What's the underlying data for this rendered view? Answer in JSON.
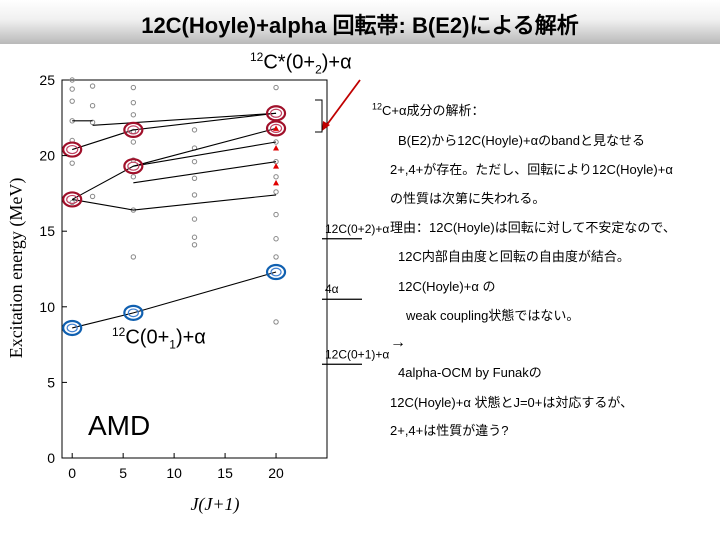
{
  "title": "12C(Hoyle)+alpha 回転帯: B(E2)による解析",
  "top_label": {
    "pre": "12",
    "main": "C*(0+",
    "sub": "2",
    "post": ")+α"
  },
  "left_label": {
    "pre": "12",
    "main": "C(0+",
    "sub": "1",
    "post": ")+α"
  },
  "amd_label": "AMD",
  "notes": {
    "line1_sup": "12",
    "line1": "C+α成分の解析：",
    "line2": "B(E2)から12C(Hoyle)+αのbandと見なせる",
    "line3": "2+,4+が存在。ただし、回転により12C(Hoyle)+α",
    "line4": "の性質は次第に失われる。",
    "line5": "理由：12C(Hoyle)は回転に対して不安定なので、",
    "line6": "12C内部自由度と回転の自由度が結合。",
    "line7": "12C(Hoyle)+α の",
    "line8": "weak coupling状態ではない。",
    "arrow": "→",
    "line9": "4alpha-OCM  by Funakの",
    "line10": "12C(Hoyle)+α 状態とJ=0+は対応するが、",
    "line11": "2+,4+は性質が違う?"
  },
  "threshold_labels": {
    "t1": "12C(0+2)+α",
    "t2": "4α",
    "t3": "12C(0+1)+α"
  },
  "chart_data": {
    "type": "scatter",
    "title": "",
    "xlabel": "J(J+1)",
    "ylabel": "Excitation energy (MeV)",
    "xlim": [
      -1,
      25
    ],
    "ylim": [
      0,
      25
    ],
    "xticks": [
      0,
      5,
      10,
      15,
      20
    ],
    "yticks": [
      0,
      5,
      10,
      15,
      20,
      25
    ],
    "gray_levels": [
      {
        "x": 0,
        "y": [
          16.9,
          19.5,
          21.0,
          22.3,
          23.6,
          24.4,
          25.0
        ]
      },
      {
        "x": 2,
        "y": [
          17.3,
          22.2,
          23.3,
          24.6
        ]
      },
      {
        "x": 6,
        "y": [
          13.3,
          16.4,
          18.6,
          19.7,
          20.9,
          21.6,
          22.7,
          23.5,
          24.5
        ]
      },
      {
        "x": 12,
        "y": [
          14.1,
          14.6,
          15.8,
          17.4,
          18.5,
          19.6,
          20.5,
          21.7
        ]
      },
      {
        "x": 20,
        "y": [
          9.0,
          13.3,
          14.5,
          16.1,
          17.6,
          18.6,
          19.6,
          20.9,
          24.5
        ]
      }
    ],
    "red_levels": {
      "x": 20,
      "y": [
        18.2,
        19.3,
        20.5,
        21.8
      ]
    },
    "highlight_red": [
      {
        "x": 0,
        "y": 20.4
      },
      {
        "x": 6,
        "y": 21.7
      },
      {
        "x": 6,
        "y": 19.3
      },
      {
        "x": 0,
        "y": 17.1
      },
      {
        "x": 20,
        "y": 22.8
      },
      {
        "x": 20,
        "y": 21.8
      }
    ],
    "highlight_blue": [
      {
        "x": 0,
        "y": 8.6
      },
      {
        "x": 6,
        "y": 9.6
      },
      {
        "x": 20,
        "y": 12.3
      }
    ],
    "band_lines": [
      [
        [
          0,
          20.4
        ],
        [
          6,
          21.7
        ],
        [
          20,
          22.8
        ]
      ],
      [
        [
          0,
          17.1
        ],
        [
          6,
          19.3
        ],
        [
          20,
          21.8
        ]
      ],
      [
        [
          0,
          8.6
        ],
        [
          6,
          9.6
        ],
        [
          20,
          12.3
        ]
      ],
      [
        [
          2,
          22.0
        ],
        [
          20,
          22.8
        ]
      ],
      [
        [
          6,
          19.3
        ],
        [
          20,
          20.9
        ]
      ],
      [
        [
          6,
          18.2
        ],
        [
          20,
          19.6
        ]
      ],
      [
        [
          0,
          17.1
        ],
        [
          6,
          16.4
        ],
        [
          20,
          17.4
        ]
      ],
      [
        [
          0,
          22.3
        ],
        [
          2,
          22.3
        ]
      ]
    ],
    "thresholds": [
      {
        "y": 14.5,
        "label": "12C(0+2)+α"
      },
      {
        "y": 10.5,
        "label": "4α"
      },
      {
        "y": 6.2,
        "label": "12C(0+1)+α"
      }
    ]
  }
}
